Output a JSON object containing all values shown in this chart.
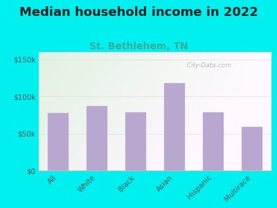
{
  "title": "Median household income in 2022",
  "subtitle": "St. Bethlehem, TN",
  "categories": [
    "All",
    "White",
    "Black",
    "Asian",
    "Hispanic",
    "Multirace"
  ],
  "values": [
    78000,
    87000,
    79000,
    118000,
    79000,
    59000
  ],
  "bar_color": "#b8a8d0",
  "bar_edge_color": "#c8b8e0",
  "title_fontsize": 13,
  "subtitle_fontsize": 10,
  "subtitle_color": "#3aaa99",
  "tick_label_color": "#555555",
  "background_outer": "#00f0f0",
  "ylim": [
    0,
    160000
  ],
  "yticks": [
    0,
    50000,
    100000,
    150000
  ],
  "ytick_labels": [
    "$0",
    "$50k",
    "$100k",
    "$150k"
  ],
  "watermark": "  City-Data.com",
  "title_color": "#222222",
  "grid_color": "#dddddd",
  "spine_color": "#bbbbbb"
}
